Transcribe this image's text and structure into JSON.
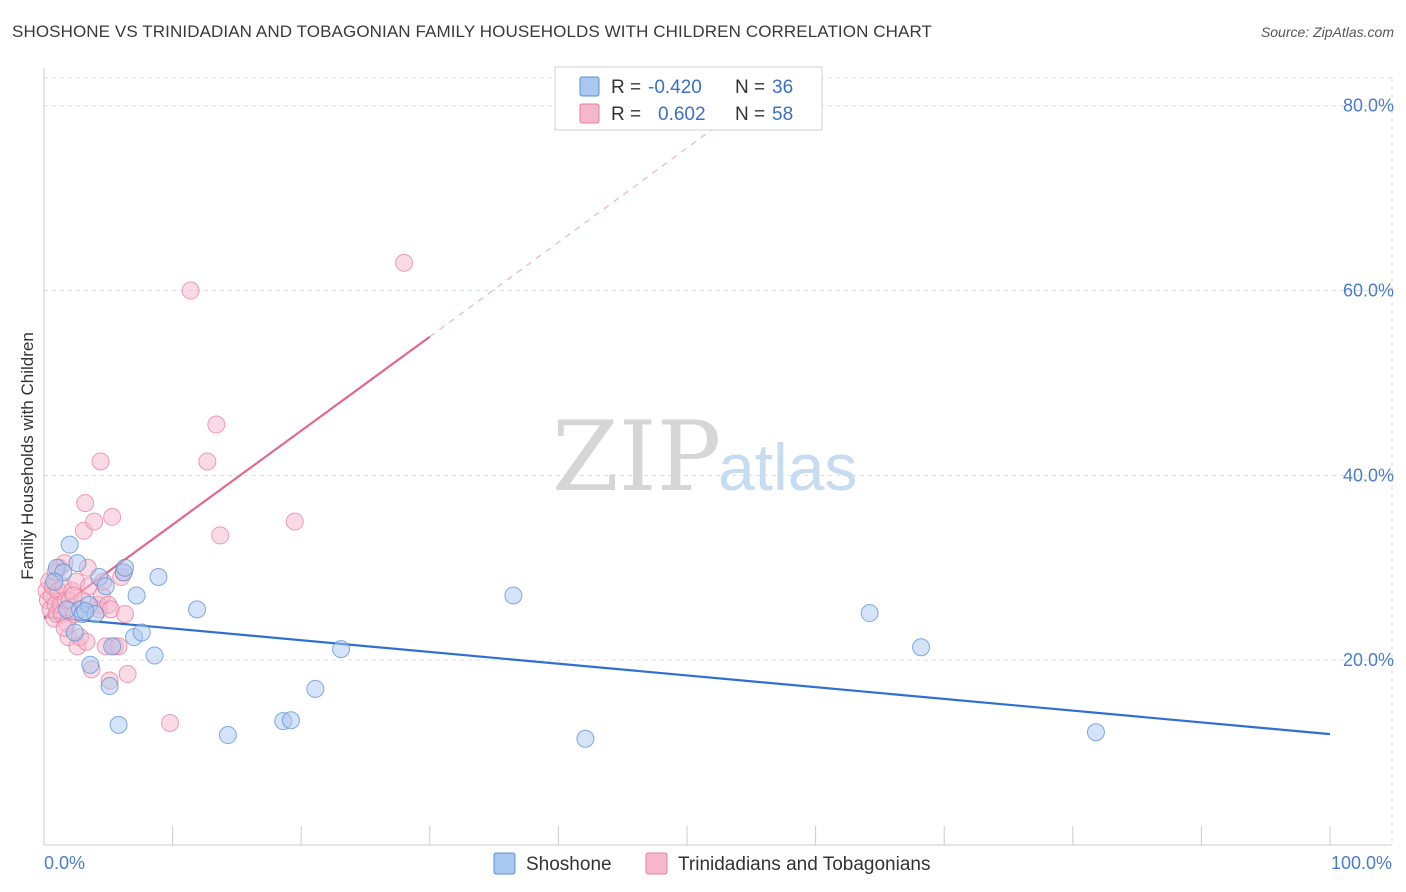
{
  "header": {
    "title": "SHOSHONE VS TRINIDADIAN AND TOBAGONIAN FAMILY HOUSEHOLDS WITH CHILDREN CORRELATION CHART",
    "source": "Source: ZipAtlas.com"
  },
  "watermark": {
    "zip": "ZIP",
    "atlas": "atlas"
  },
  "legend_box": {
    "rows": [
      {
        "r_label": "R =",
        "r_value": "-0.420",
        "n_label": "N =",
        "n_value": "36",
        "color": "#a9c8f0"
      },
      {
        "r_label": "R =",
        "r_value": "0.602",
        "n_label": "N =",
        "n_value": "58",
        "color": "#f5b8cb"
      }
    ]
  },
  "colors": {
    "blue_fill": "#a9c8f0",
    "blue_stroke": "#5b8fd6",
    "blue_line": "#2f6fcf",
    "pink_fill": "#f5b8cb",
    "pink_stroke": "#e57fa0",
    "pink_line": "#e0678f",
    "grid": "#dddddd",
    "tick_text": "#4a7cc9"
  },
  "chart_data": {
    "type": "scatter",
    "title": "SHOSHONE VS TRINIDADIAN AND TOBAGONIAN FAMILY HOUSEHOLDS WITH CHILDREN CORRELATION CHART",
    "xlabel": "",
    "ylabel": "Family Households with Children",
    "xlim": [
      0,
      100
    ],
    "ylim": [
      0,
      83
    ],
    "x_tick_labels": [
      "0.0%",
      "100.0%"
    ],
    "y_ticks": [
      20,
      40,
      60,
      80
    ],
    "y_tick_labels": [
      "20.0%",
      "40.0%",
      "60.0%",
      "80.0%"
    ],
    "grid": true,
    "legend_position": "bottom-center",
    "series": [
      {
        "name": "Shoshone",
        "color": "#a9c8f0",
        "points": [
          [
            1.0,
            30.0
          ],
          [
            1.5,
            29.5
          ],
          [
            1.8,
            25.5
          ],
          [
            2.0,
            32.5
          ],
          [
            2.4,
            23.0
          ],
          [
            2.6,
            30.5
          ],
          [
            2.8,
            25.5
          ],
          [
            3.0,
            25.0
          ],
          [
            3.5,
            26.0
          ],
          [
            3.6,
            19.5
          ],
          [
            4.0,
            25.0
          ],
          [
            4.3,
            29.0
          ],
          [
            4.8,
            28.0
          ],
          [
            5.1,
            17.2
          ],
          [
            5.3,
            21.5
          ],
          [
            5.8,
            13.0
          ],
          [
            6.2,
            29.5
          ],
          [
            6.3,
            30.0
          ],
          [
            7.0,
            22.5
          ],
          [
            7.2,
            27.0
          ],
          [
            7.6,
            23.0
          ],
          [
            8.6,
            20.5
          ],
          [
            8.9,
            29.0
          ],
          [
            11.9,
            25.5
          ],
          [
            14.3,
            11.9
          ],
          [
            18.6,
            13.4
          ],
          [
            19.2,
            13.5
          ],
          [
            21.1,
            16.9
          ],
          [
            23.1,
            21.2
          ],
          [
            36.5,
            27.0
          ],
          [
            42.1,
            11.5
          ],
          [
            64.2,
            25.1
          ],
          [
            68.2,
            21.4
          ],
          [
            81.8,
            12.2
          ],
          [
            0.8,
            28.5
          ],
          [
            3.2,
            25.3
          ]
        ]
      },
      {
        "name": "Trinidadians and Tobagonians",
        "color": "#f5b8cb",
        "points": [
          [
            0.2,
            27.5
          ],
          [
            0.3,
            26.5
          ],
          [
            0.4,
            28.5
          ],
          [
            0.5,
            25.5
          ],
          [
            0.6,
            27.0
          ],
          [
            0.7,
            28.0
          ],
          [
            0.8,
            24.5
          ],
          [
            0.9,
            26.0
          ],
          [
            1.0,
            25.0
          ],
          [
            1.1,
            27.5
          ],
          [
            1.2,
            30.0
          ],
          [
            1.3,
            26.0
          ],
          [
            1.4,
            25.0
          ],
          [
            1.5,
            28.0
          ],
          [
            1.6,
            30.5
          ],
          [
            1.7,
            26.5
          ],
          [
            1.8,
            24.0
          ],
          [
            1.9,
            22.5
          ],
          [
            2.0,
            26.5
          ],
          [
            2.2,
            27.5
          ],
          [
            2.4,
            25.0
          ],
          [
            2.5,
            28.5
          ],
          [
            2.6,
            21.5
          ],
          [
            2.8,
            22.5
          ],
          [
            3.0,
            26.5
          ],
          [
            3.1,
            34.0
          ],
          [
            3.2,
            37.0
          ],
          [
            3.3,
            22.0
          ],
          [
            3.4,
            30.0
          ],
          [
            3.5,
            28.0
          ],
          [
            3.7,
            19.0
          ],
          [
            3.9,
            35.0
          ],
          [
            4.2,
            26.0
          ],
          [
            4.3,
            25.5
          ],
          [
            4.4,
            41.5
          ],
          [
            4.5,
            27.0
          ],
          [
            4.6,
            28.5
          ],
          [
            4.8,
            21.5
          ],
          [
            5.0,
            26.0
          ],
          [
            5.2,
            25.5
          ],
          [
            5.3,
            35.5
          ],
          [
            5.5,
            21.5
          ],
          [
            5.8,
            21.5
          ],
          [
            6.0,
            29.0
          ],
          [
            6.2,
            29.5
          ],
          [
            6.3,
            25.0
          ],
          [
            6.5,
            18.5
          ],
          [
            9.8,
            13.2
          ],
          [
            11.4,
            60.0
          ],
          [
            12.7,
            41.5
          ],
          [
            13.4,
            45.5
          ],
          [
            13.7,
            33.5
          ],
          [
            19.5,
            35.0
          ],
          [
            28.0,
            63.0
          ],
          [
            2.3,
            27.0
          ],
          [
            1.6,
            23.5
          ],
          [
            0.9,
            29.5
          ],
          [
            5.1,
            17.8
          ]
        ]
      }
    ],
    "trend_lines": [
      {
        "series": "Shoshone",
        "x": [
          0,
          100
        ],
        "y": [
          24.7,
          12.0
        ]
      },
      {
        "series": "Trinidadians and Tobagonians",
        "x": [
          0,
          30
        ],
        "y": [
          24.5,
          55.0
        ]
      },
      {
        "series": "Trinidadians and Tobagonians (extrapolated)",
        "x": [
          30,
          53
        ],
        "y": [
          55.0,
          78.5
        ]
      }
    ]
  }
}
